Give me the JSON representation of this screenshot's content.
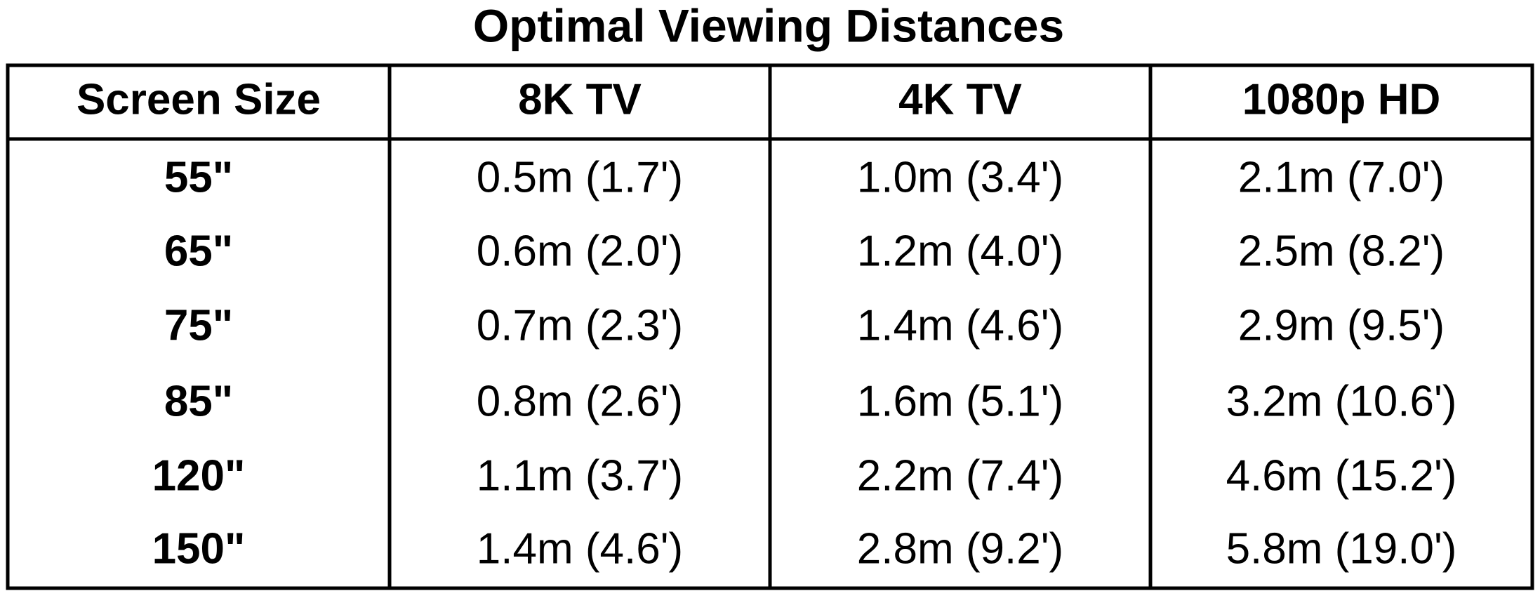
{
  "title": "Optimal Viewing Distances",
  "table": {
    "columns": [
      "Screen Size",
      "8K TV",
      "4K TV",
      "1080p HD"
    ],
    "rows": [
      [
        "55\"",
        "0.5m (1.7')",
        "1.0m (3.4')",
        "2.1m (7.0')"
      ],
      [
        "65\"",
        "0.6m (2.0')",
        "1.2m (4.0')",
        "2.5m (8.2')"
      ],
      [
        "75\"",
        "0.7m (2.3')",
        "1.4m (4.6')",
        "2.9m (9.5')"
      ],
      [
        "85\"",
        "0.8m (2.6')",
        "1.6m (5.1')",
        "3.2m (10.6')"
      ],
      [
        "120\"",
        "1.1m (3.7')",
        "2.2m (7.4')",
        "4.6m (15.2')"
      ],
      [
        "150\"",
        "1.4m (4.6')",
        "2.8m (9.2')",
        "5.8m (19.0')"
      ]
    ]
  }
}
